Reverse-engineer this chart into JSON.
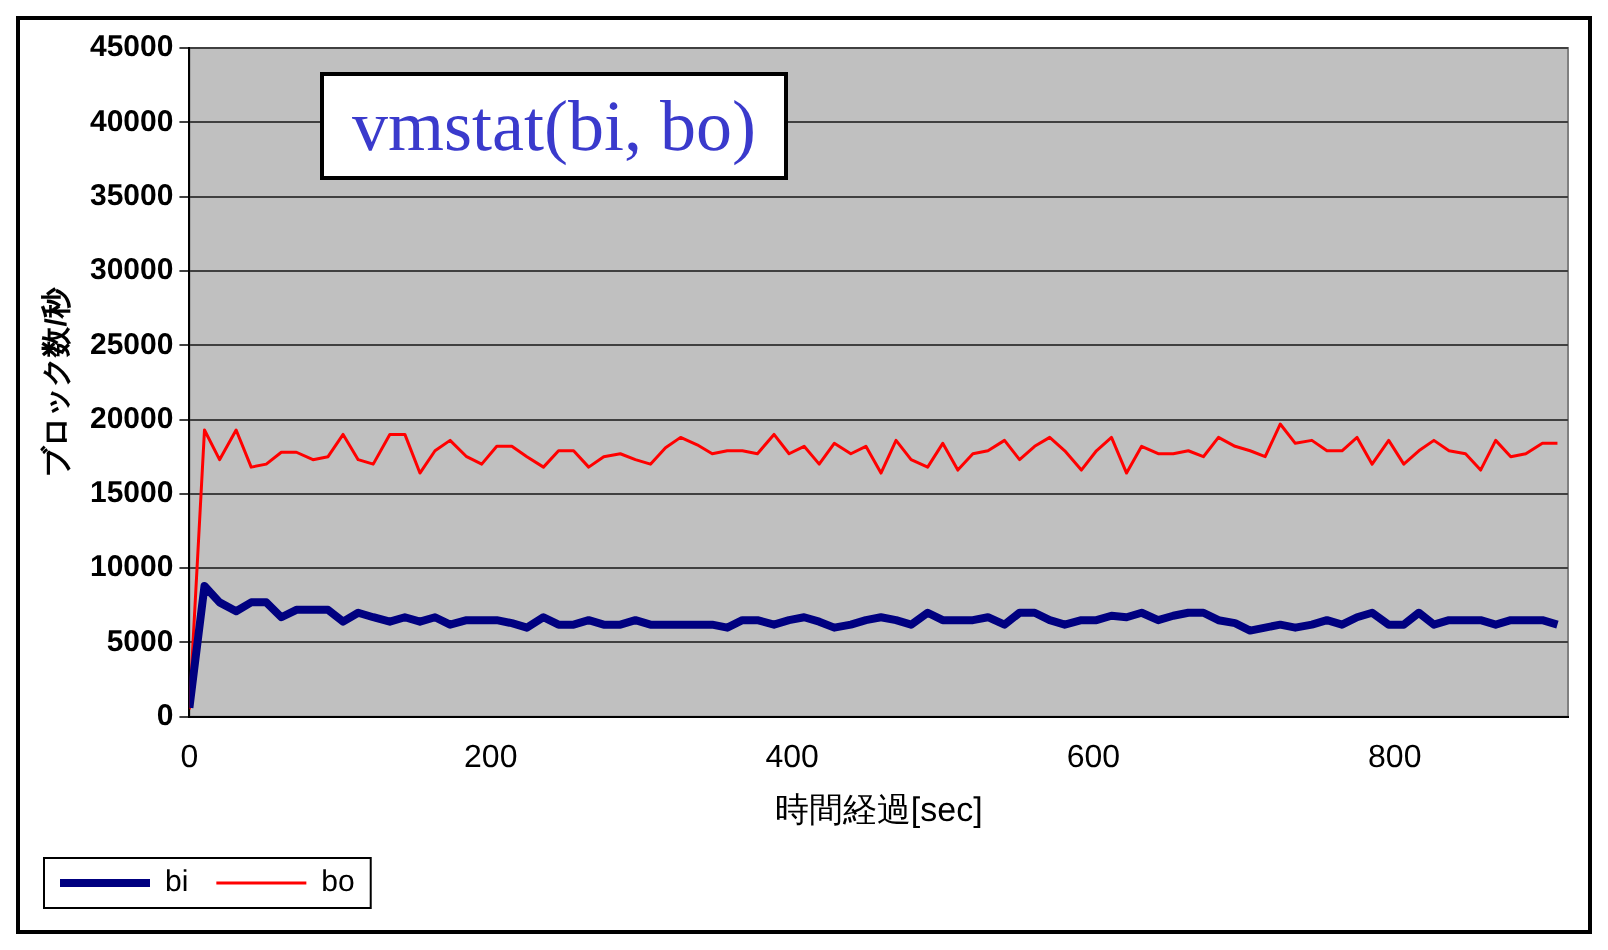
{
  "chart_data": {
    "type": "line",
    "title": "vmstat(bi, bo)",
    "xlabel": "時間経過[sec]",
    "ylabel": "ブロック数/秒",
    "x": [
      0,
      10,
      20,
      31,
      41,
      51,
      61,
      71,
      82,
      92,
      102,
      112,
      122,
      133,
      143,
      153,
      163,
      173,
      184,
      194,
      204,
      214,
      224,
      235,
      245,
      255,
      265,
      275,
      286,
      296,
      306,
      316,
      326,
      337,
      347,
      357,
      367,
      377,
      388,
      398,
      408,
      418,
      428,
      439,
      449,
      459,
      469,
      479,
      490,
      500,
      510,
      520,
      530,
      541,
      551,
      561,
      571,
      581,
      592,
      602,
      612,
      622,
      632,
      643,
      653,
      663,
      673,
      683,
      694,
      704,
      714,
      724,
      734,
      745,
      755,
      765,
      775,
      785,
      796,
      806,
      816,
      826,
      836,
      847,
      857,
      867,
      877,
      887,
      898,
      908
    ],
    "series": [
      {
        "name": "bi",
        "color": "#000080",
        "values": [
          600,
          8800,
          7700,
          7100,
          7700,
          7700,
          6700,
          7200,
          7200,
          7200,
          6400,
          7000,
          6700,
          6400,
          6700,
          6400,
          6700,
          6200,
          6500,
          6500,
          6500,
          6300,
          6000,
          6700,
          6200,
          6200,
          6500,
          6200,
          6200,
          6500,
          6200,
          6200,
          6200,
          6200,
          6200,
          6000,
          6500,
          6500,
          6200,
          6500,
          6700,
          6400,
          6000,
          6200,
          6500,
          6700,
          6500,
          6200,
          7000,
          6500,
          6500,
          6500,
          6700,
          6200,
          7000,
          7000,
          6500,
          6200,
          6500,
          6500,
          6800,
          6700,
          7000,
          6500,
          6800,
          7000,
          7000,
          6500,
          6300,
          5800,
          6000,
          6200,
          6000,
          6200,
          6500,
          6200,
          6700,
          7000,
          6200,
          6200,
          7000,
          6200,
          6500,
          6500,
          6500,
          6200,
          6500,
          6500,
          6500,
          6200
        ]
      },
      {
        "name": "bo",
        "color": "#ff0000",
        "values": [
          500,
          19300,
          17300,
          19300,
          16800,
          17000,
          17800,
          17800,
          17300,
          17500,
          19000,
          17300,
          17000,
          19000,
          19000,
          16400,
          17900,
          18600,
          17500,
          17000,
          18200,
          18200,
          17500,
          16800,
          17900,
          17900,
          16800,
          17500,
          17700,
          17300,
          17000,
          18100,
          18800,
          18300,
          17700,
          17900,
          17900,
          17700,
          19000,
          17700,
          18200,
          17000,
          18400,
          17700,
          18200,
          16400,
          18600,
          17300,
          16800,
          18400,
          16600,
          17700,
          17900,
          18600,
          17300,
          18200,
          18800,
          17900,
          16600,
          17900,
          18800,
          16400,
          18200,
          17700,
          17700,
          17900,
          17500,
          18800,
          18200,
          17900,
          17500,
          19700,
          18400,
          18600,
          17900,
          17900,
          18800,
          17000,
          18600,
          17000,
          17900,
          18600,
          17900,
          17700,
          16600,
          18600,
          17500,
          17700,
          18400,
          18400
        ]
      }
    ],
    "xlim": [
      0,
      915
    ],
    "xticks": [
      0,
      200,
      400,
      600,
      800
    ],
    "ylim": [
      0,
      45000
    ],
    "yticks": [
      0,
      5000,
      10000,
      15000,
      20000,
      25000,
      30000,
      35000,
      40000,
      45000
    ],
    "grid": "y",
    "legend": "bottom left",
    "marker": "none",
    "line_style": "solid"
  }
}
